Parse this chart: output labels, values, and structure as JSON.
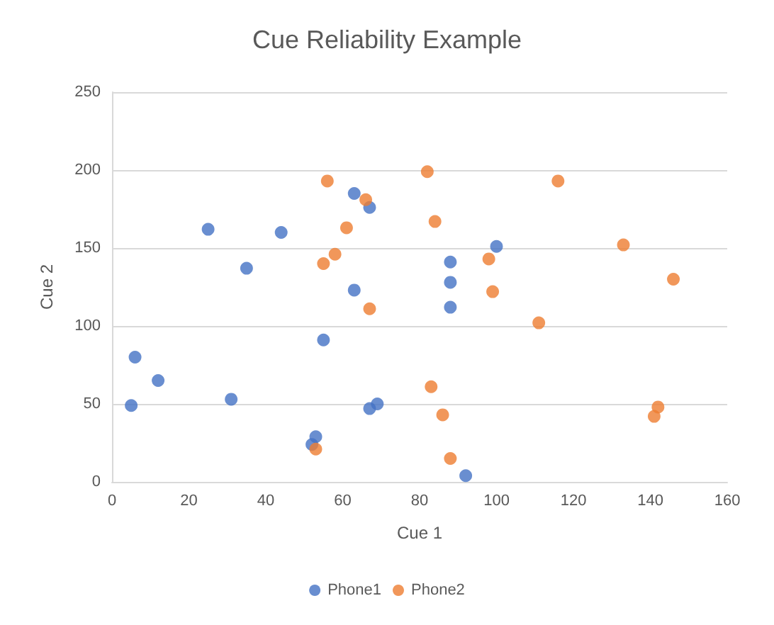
{
  "chart_data": {
    "type": "scatter",
    "title": "Cue Reliability Example",
    "xlabel": "Cue 1",
    "ylabel": "Cue 2",
    "xlim": [
      0,
      160
    ],
    "xticks": [
      0,
      20,
      40,
      60,
      80,
      100,
      120,
      140,
      160
    ],
    "ylim": [
      0,
      250
    ],
    "yticks": [
      0,
      50,
      100,
      150,
      200,
      250
    ],
    "grid": "y",
    "legend": "bottom",
    "marker": "circle",
    "series": [
      {
        "name": "Phone1",
        "color": "#4472c4",
        "x": [
          5,
          6,
          12,
          25,
          31,
          35,
          44,
          55,
          52,
          53,
          63,
          67,
          63,
          67,
          69,
          88,
          88,
          88,
          100,
          92
        ],
        "values": [
          49,
          80,
          65,
          162,
          53,
          137,
          160,
          91,
          24,
          29,
          185,
          176,
          123,
          47,
          50,
          128,
          141,
          112,
          151,
          4
        ]
      },
      {
        "name": "Phone2",
        "color": "#ed7d31",
        "x": [
          56,
          66,
          82,
          116,
          84,
          61,
          58,
          55,
          67,
          98,
          99,
          133,
          146,
          111,
          83,
          86,
          88,
          53,
          142,
          141
        ],
        "values": [
          193,
          181,
          199,
          193,
          167,
          163,
          146,
          140,
          111,
          143,
          122,
          152,
          130,
          102,
          61,
          43,
          15,
          21,
          48,
          42
        ]
      }
    ]
  }
}
